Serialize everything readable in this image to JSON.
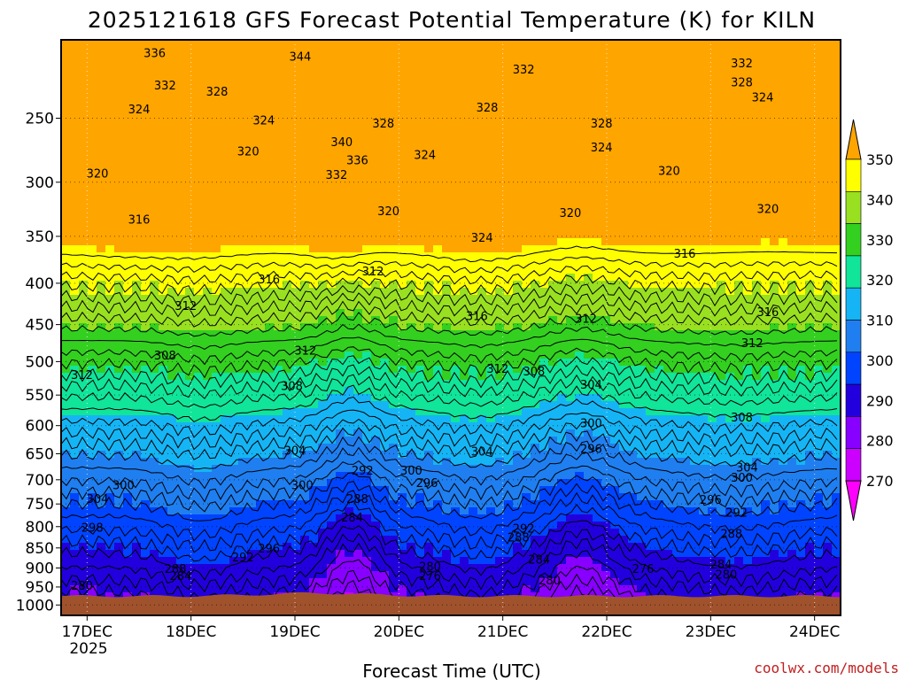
{
  "chart_data": {
    "type": "heatmap",
    "title": "2025121618 GFS Forecast Potential Temperature (K) for KILN",
    "xlabel": "Forecast Time (UTC)",
    "ylabel": "",
    "credit": "coolwx.com/models",
    "x_tick_labels": [
      "17DEC",
      "18DEC",
      "19DEC",
      "20DEC",
      "21DEC",
      "22DEC",
      "23DEC",
      "24DEC"
    ],
    "x_start_day": 16.75,
    "x_end_day": 24.25,
    "x_tick_days": [
      17,
      18,
      19,
      20,
      21,
      22,
      23,
      24
    ],
    "x_year_label": "2025",
    "y_axis": "pressure (hPa), inverted",
    "y_ticks": [
      250,
      300,
      350,
      400,
      450,
      500,
      550,
      600,
      650,
      700,
      750,
      800,
      850,
      900,
      950,
      1000
    ],
    "y_range_hpa": [
      200,
      1030
    ],
    "colorbar": {
      "levels": [
        270,
        280,
        290,
        300,
        310,
        320,
        330,
        340,
        350
      ],
      "tick_labels": [
        "270",
        "280",
        "290",
        "300",
        "310",
        "320",
        "330",
        "340",
        "350"
      ],
      "colors": [
        "#ff00ff",
        "#cc00ff",
        "#8800ff",
        "#2200dd",
        "#0044ff",
        "#1f7ff0",
        "#15b5f5",
        "#10e59a",
        "#33d020",
        "#99e020",
        "#ffff00",
        "#ffa500"
      ],
      "extend": "both"
    },
    "terrain_color": "#a0522d",
    "contour_interval_k": 2,
    "contour_labels": [
      {
        "value": 336,
        "day": 17.65,
        "p": 208
      },
      {
        "value": 344,
        "day": 19.05,
        "p": 210
      },
      {
        "value": 332,
        "day": 21.2,
        "p": 218
      },
      {
        "value": 332,
        "day": 23.3,
        "p": 214
      },
      {
        "value": 332,
        "day": 17.75,
        "p": 228
      },
      {
        "value": 328,
        "day": 18.25,
        "p": 232
      },
      {
        "value": 328,
        "day": 23.3,
        "p": 226
      },
      {
        "value": 324,
        "day": 17.5,
        "p": 244
      },
      {
        "value": 328,
        "day": 20.85,
        "p": 243
      },
      {
        "value": 324,
        "day": 23.5,
        "p": 236
      },
      {
        "value": 324,
        "day": 18.7,
        "p": 252
      },
      {
        "value": 328,
        "day": 19.85,
        "p": 254
      },
      {
        "value": 328,
        "day": 21.95,
        "p": 254
      },
      {
        "value": 340,
        "day": 19.45,
        "p": 268
      },
      {
        "value": 320,
        "day": 18.55,
        "p": 275
      },
      {
        "value": 336,
        "day": 19.6,
        "p": 282
      },
      {
        "value": 324,
        "day": 20.25,
        "p": 278
      },
      {
        "value": 324,
        "day": 21.95,
        "p": 272
      },
      {
        "value": 332,
        "day": 19.4,
        "p": 294
      },
      {
        "value": 320,
        "day": 17.1,
        "p": 293
      },
      {
        "value": 320,
        "day": 22.6,
        "p": 291
      },
      {
        "value": 316,
        "day": 17.5,
        "p": 334
      },
      {
        "value": 320,
        "day": 19.9,
        "p": 326
      },
      {
        "value": 320,
        "day": 21.65,
        "p": 328
      },
      {
        "value": 320,
        "day": 23.55,
        "p": 324
      },
      {
        "value": 324,
        "day": 20.8,
        "p": 352
      },
      {
        "value": 316,
        "day": 22.75,
        "p": 368
      },
      {
        "value": 316,
        "day": 18.75,
        "p": 396
      },
      {
        "value": 312,
        "day": 19.75,
        "p": 387
      },
      {
        "value": 312,
        "day": 17.95,
        "p": 427
      },
      {
        "value": 316,
        "day": 20.75,
        "p": 440
      },
      {
        "value": 312,
        "day": 21.8,
        "p": 443
      },
      {
        "value": 316,
        "day": 23.55,
        "p": 435
      },
      {
        "value": 312,
        "day": 19.1,
        "p": 485
      },
      {
        "value": 308,
        "day": 17.75,
        "p": 492
      },
      {
        "value": 312,
        "day": 23.4,
        "p": 475
      },
      {
        "value": 312,
        "day": 16.95,
        "p": 520
      },
      {
        "value": 312,
        "day": 20.95,
        "p": 511
      },
      {
        "value": 308,
        "day": 21.3,
        "p": 515
      },
      {
        "value": 308,
        "day": 18.97,
        "p": 537
      },
      {
        "value": 304,
        "day": 21.85,
        "p": 535
      },
      {
        "value": 308,
        "day": 23.3,
        "p": 587
      },
      {
        "value": 300,
        "day": 21.85,
        "p": 597
      },
      {
        "value": 296,
        "day": 21.85,
        "p": 642
      },
      {
        "value": 304,
        "day": 19.0,
        "p": 645
      },
      {
        "value": 304,
        "day": 20.8,
        "p": 647
      },
      {
        "value": 304,
        "day": 23.35,
        "p": 677
      },
      {
        "value": 292,
        "day": 19.65,
        "p": 683
      },
      {
        "value": 300,
        "day": 20.12,
        "p": 683
      },
      {
        "value": 300,
        "day": 23.3,
        "p": 697
      },
      {
        "value": 300,
        "day": 17.35,
        "p": 712
      },
      {
        "value": 300,
        "day": 19.07,
        "p": 712
      },
      {
        "value": 296,
        "day": 20.27,
        "p": 707
      },
      {
        "value": 304,
        "day": 17.1,
        "p": 740
      },
      {
        "value": 288,
        "day": 19.6,
        "p": 740
      },
      {
        "value": 296,
        "day": 23.0,
        "p": 742
      },
      {
        "value": 284,
        "day": 19.55,
        "p": 781
      },
      {
        "value": 292,
        "day": 23.25,
        "p": 770
      },
      {
        "value": 298,
        "day": 17.05,
        "p": 803
      },
      {
        "value": 292,
        "day": 21.2,
        "p": 806
      },
      {
        "value": 288,
        "day": 21.15,
        "p": 826
      },
      {
        "value": 288,
        "day": 23.2,
        "p": 818
      },
      {
        "value": 296,
        "day": 18.75,
        "p": 853
      },
      {
        "value": 292,
        "day": 18.5,
        "p": 874
      },
      {
        "value": 284,
        "day": 21.35,
        "p": 880
      },
      {
        "value": 284,
        "day": 23.1,
        "p": 892
      },
      {
        "value": 288,
        "day": 17.85,
        "p": 903
      },
      {
        "value": 280,
        "day": 20.3,
        "p": 898
      },
      {
        "value": 276,
        "day": 22.35,
        "p": 903
      },
      {
        "value": 284,
        "day": 17.9,
        "p": 922
      },
      {
        "value": 276,
        "day": 20.3,
        "p": 922
      },
      {
        "value": 280,
        "day": 23.15,
        "p": 918
      },
      {
        "value": 280,
        "day": 21.45,
        "p": 934
      },
      {
        "value": 280,
        "day": 16.95,
        "p": 948
      }
    ]
  }
}
